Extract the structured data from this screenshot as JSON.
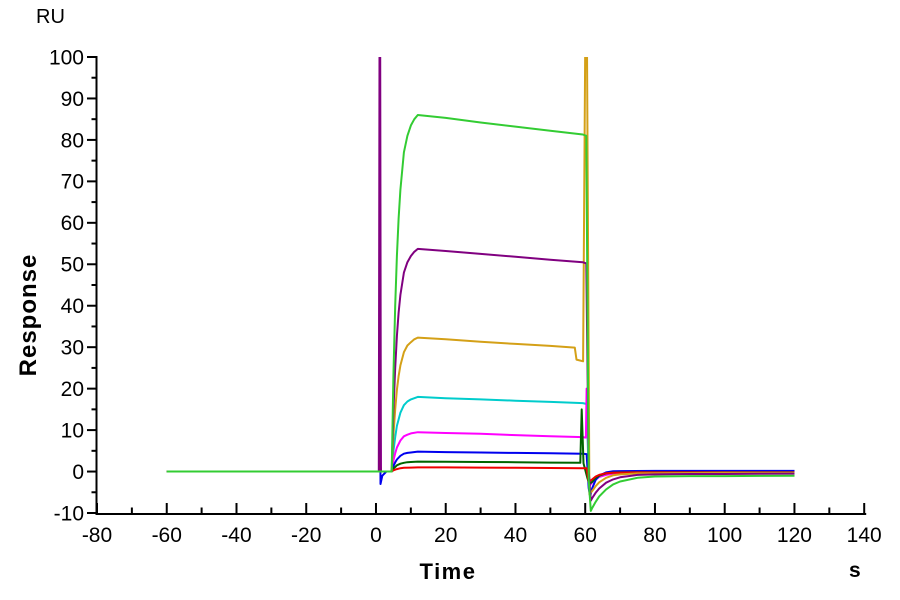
{
  "chart_data": {
    "type": "line",
    "title": "",
    "ylabel": "Response",
    "y_unit": "RU",
    "xlabel": "Time",
    "x_unit": "s",
    "xlim": [
      -80,
      140
    ],
    "ylim": [
      -10,
      100
    ],
    "x_ticks": [
      -80,
      -60,
      -40,
      -20,
      0,
      20,
      40,
      60,
      80,
      100,
      120,
      140
    ],
    "x_minor_ticks": [
      -70,
      -50,
      -30,
      -10,
      10,
      30,
      50,
      70,
      90,
      110,
      130
    ],
    "y_ticks": [
      -10,
      0,
      10,
      20,
      30,
      40,
      50,
      60,
      70,
      80,
      90,
      100
    ],
    "y_minor_ticks": [
      -5,
      5,
      15,
      25,
      35,
      45,
      55,
      65,
      75,
      85,
      95
    ],
    "grid": false,
    "legend": "none",
    "axis_color": "#000000",
    "series": [
      {
        "name": "cyan-18RU",
        "color": "#00CCCC",
        "points": [
          [
            -60,
            0
          ],
          [
            -30,
            0
          ],
          [
            0,
            0
          ],
          [
            4.5,
            0
          ],
          [
            5,
            4.9
          ],
          [
            5.5,
            8.3
          ],
          [
            6,
            11
          ],
          [
            7,
            14.2
          ],
          [
            8,
            16
          ],
          [
            9,
            16.9
          ],
          [
            10,
            17.4
          ],
          [
            12,
            18
          ],
          [
            20,
            17.7
          ],
          [
            30,
            17.4
          ],
          [
            40,
            17.1
          ],
          [
            50,
            16.8
          ],
          [
            59.3,
            16.5
          ],
          [
            60.4,
            16.3
          ],
          [
            61,
            -1
          ],
          [
            61.6,
            -3
          ],
          [
            62,
            -2.6
          ],
          [
            63,
            -1.8
          ],
          [
            64,
            -1.3
          ],
          [
            66,
            -0.7
          ],
          [
            68,
            -0.5
          ],
          [
            70,
            -0.4
          ],
          [
            75,
            -0.3
          ],
          [
            80,
            -0.3
          ],
          [
            90,
            -0.25
          ],
          [
            100,
            -0.25
          ],
          [
            110,
            -0.2
          ],
          [
            120,
            -0.2
          ]
        ]
      },
      {
        "name": "magenta-9.5RU",
        "color": "#FF00FF",
        "points": [
          [
            -60,
            0
          ],
          [
            -30,
            0
          ],
          [
            0,
            0
          ],
          [
            0.9,
            0
          ],
          [
            1.1,
            38
          ],
          [
            1.4,
            0
          ],
          [
            4.5,
            0
          ],
          [
            5,
            2.6
          ],
          [
            5.5,
            4.4
          ],
          [
            6,
            5.8
          ],
          [
            7,
            7.5
          ],
          [
            8,
            8.5
          ],
          [
            9,
            8.9
          ],
          [
            10,
            9.2
          ],
          [
            12,
            9.5
          ],
          [
            20,
            9.3
          ],
          [
            30,
            9.1
          ],
          [
            40,
            8.8
          ],
          [
            50,
            8.5
          ],
          [
            59.3,
            8.3
          ],
          [
            60.2,
            8.2
          ],
          [
            60.4,
            20
          ],
          [
            61.2,
            -3.5
          ],
          [
            62,
            -2.6
          ],
          [
            63,
            -1.9
          ],
          [
            64,
            -1.3
          ],
          [
            66,
            -0.8
          ],
          [
            68,
            -0.5
          ],
          [
            70,
            -0.4
          ],
          [
            75,
            -0.35
          ],
          [
            80,
            -0.3
          ],
          [
            90,
            -0.3
          ],
          [
            100,
            -0.3
          ],
          [
            110,
            -0.3
          ],
          [
            120,
            -0.3
          ]
        ]
      },
      {
        "name": "blue-5RU",
        "color": "#0000EE",
        "points": [
          [
            -60,
            0
          ],
          [
            -30,
            0
          ],
          [
            0,
            0
          ],
          [
            0.9,
            0
          ],
          [
            1.1,
            38
          ],
          [
            1.3,
            -3
          ],
          [
            1.8,
            -1
          ],
          [
            3,
            0
          ],
          [
            4.5,
            0
          ],
          [
            5,
            1.3
          ],
          [
            5.5,
            2.2
          ],
          [
            6,
            2.9
          ],
          [
            7,
            3.8
          ],
          [
            8,
            4.3
          ],
          [
            9,
            4.5
          ],
          [
            10,
            4.6
          ],
          [
            12,
            4.8
          ],
          [
            20,
            4.7
          ],
          [
            30,
            4.6
          ],
          [
            40,
            4.5
          ],
          [
            50,
            4.4
          ],
          [
            59.3,
            4.3
          ],
          [
            60.4,
            4.2
          ],
          [
            61,
            -4
          ],
          [
            61.4,
            -6
          ],
          [
            62,
            -4
          ],
          [
            63,
            -2
          ],
          [
            64,
            -1
          ],
          [
            66,
            -0.2
          ],
          [
            68,
            0.05
          ],
          [
            70,
            0.1
          ],
          [
            80,
            0.15
          ],
          [
            90,
            0.15
          ],
          [
            100,
            0.15
          ],
          [
            110,
            0.15
          ],
          [
            120,
            0.15
          ]
        ]
      },
      {
        "name": "darkgreen-2RU",
        "color": "#006400",
        "points": [
          [
            -60,
            0
          ],
          [
            -30,
            0
          ],
          [
            0,
            0
          ],
          [
            1,
            0
          ],
          [
            1.15,
            4
          ],
          [
            1.35,
            0
          ],
          [
            4.5,
            0
          ],
          [
            5,
            0.7
          ],
          [
            5.5,
            1.1
          ],
          [
            6,
            1.5
          ],
          [
            7,
            1.9
          ],
          [
            8,
            2.1
          ],
          [
            9,
            2.25
          ],
          [
            10,
            2.3
          ],
          [
            12,
            2.4
          ],
          [
            20,
            2.35
          ],
          [
            30,
            2.3
          ],
          [
            40,
            2.25
          ],
          [
            50,
            2.15
          ],
          [
            58.6,
            2.1
          ],
          [
            59,
            15
          ],
          [
            59.5,
            2
          ],
          [
            60.6,
            -1.5
          ],
          [
            61.2,
            -3
          ],
          [
            62,
            -2.5
          ],
          [
            63,
            -1.5
          ],
          [
            64,
            -1
          ],
          [
            66,
            -0.45
          ],
          [
            68,
            -0.26
          ],
          [
            70,
            -0.2
          ],
          [
            75,
            -0.16
          ],
          [
            80,
            -0.15
          ],
          [
            90,
            -0.15
          ],
          [
            100,
            -0.15
          ],
          [
            110,
            -0.15
          ],
          [
            120,
            -0.15
          ]
        ]
      },
      {
        "name": "red-1RU",
        "color": "#EE0000",
        "points": [
          [
            -60,
            0
          ],
          [
            -30,
            0
          ],
          [
            0,
            0
          ],
          [
            0.9,
            0
          ],
          [
            1.1,
            4
          ],
          [
            1.4,
            0
          ],
          [
            4.5,
            0
          ],
          [
            5,
            0.3
          ],
          [
            6,
            0.6
          ],
          [
            7,
            0.8
          ],
          [
            8,
            0.9
          ],
          [
            10,
            0.95
          ],
          [
            12,
            1
          ],
          [
            20,
            1
          ],
          [
            30,
            0.95
          ],
          [
            40,
            0.9
          ],
          [
            50,
            0.85
          ],
          [
            59.3,
            0.8
          ],
          [
            60.4,
            0.8
          ],
          [
            61,
            -2.5
          ],
          [
            62,
            -1.9
          ],
          [
            63,
            -1.2
          ],
          [
            64,
            -0.8
          ],
          [
            66,
            -0.4
          ],
          [
            68,
            -0.3
          ],
          [
            70,
            -0.25
          ],
          [
            75,
            -0.2
          ],
          [
            80,
            -0.2
          ],
          [
            90,
            -0.2
          ],
          [
            100,
            -0.2
          ],
          [
            110,
            -0.2
          ],
          [
            120,
            -0.2
          ]
        ]
      },
      {
        "name": "gold-32RU",
        "color": "#D4A017",
        "points": [
          [
            -60,
            0
          ],
          [
            -30,
            0
          ],
          [
            0,
            0
          ],
          [
            4.5,
            0
          ],
          [
            5,
            8.7
          ],
          [
            5.5,
            15
          ],
          [
            6,
            19.7
          ],
          [
            6.5,
            23
          ],
          [
            7,
            25.6
          ],
          [
            8,
            28.8
          ],
          [
            9,
            30.4
          ],
          [
            10,
            31.2
          ],
          [
            11,
            31.9
          ],
          [
            12,
            32.3
          ],
          [
            20,
            31.9
          ],
          [
            30,
            31.3
          ],
          [
            40,
            30.8
          ],
          [
            50,
            30.3
          ],
          [
            57,
            29.9
          ],
          [
            57.5,
            27
          ],
          [
            59.4,
            26.6
          ],
          [
            60,
            102
          ],
          [
            60.5,
            102
          ],
          [
            61.2,
            -5.5
          ],
          [
            62,
            -4.7
          ],
          [
            63,
            -3.5
          ],
          [
            64,
            -2.6
          ],
          [
            66,
            -1.5
          ],
          [
            68,
            -0.9
          ],
          [
            70,
            -0.7
          ],
          [
            75,
            -0.45
          ],
          [
            80,
            -0.4
          ],
          [
            90,
            -0.35
          ],
          [
            100,
            -0.3
          ],
          [
            110,
            -0.3
          ],
          [
            120,
            -0.3
          ]
        ]
      },
      {
        "name": "purple-54RU",
        "color": "#800080",
        "points": [
          [
            -60,
            0
          ],
          [
            -30,
            0
          ],
          [
            0,
            0
          ],
          [
            0.8,
            0
          ],
          [
            1,
            102
          ],
          [
            1.2,
            102
          ],
          [
            1.4,
            0
          ],
          [
            4.5,
            0
          ],
          [
            5,
            14.5
          ],
          [
            5.5,
            25
          ],
          [
            6,
            32.7
          ],
          [
            6.5,
            38.3
          ],
          [
            7,
            42.6
          ],
          [
            8,
            48
          ],
          [
            9,
            50.5
          ],
          [
            10,
            52
          ],
          [
            11,
            53
          ],
          [
            12,
            53.7
          ],
          [
            20,
            53.2
          ],
          [
            30,
            52.5
          ],
          [
            40,
            51.8
          ],
          [
            50,
            51.1
          ],
          [
            59.3,
            50.5
          ],
          [
            60.3,
            50.2
          ],
          [
            61,
            0
          ],
          [
            61.6,
            -7
          ],
          [
            62,
            -6.4
          ],
          [
            63,
            -5.1
          ],
          [
            64,
            -4.1
          ],
          [
            66,
            -2.7
          ],
          [
            68,
            -1.9
          ],
          [
            70,
            -1.4
          ],
          [
            75,
            -0.8
          ],
          [
            80,
            -0.7
          ],
          [
            90,
            -0.6
          ],
          [
            100,
            -0.6
          ],
          [
            110,
            -0.55
          ],
          [
            120,
            -0.5
          ]
        ]
      },
      {
        "name": "green-86RU",
        "color": "#33CC33",
        "points": [
          [
            -60,
            0
          ],
          [
            -30,
            0
          ],
          [
            0,
            0
          ],
          [
            2,
            0
          ],
          [
            4.5,
            0
          ],
          [
            5,
            23
          ],
          [
            5.5,
            40
          ],
          [
            6,
            52
          ],
          [
            6.5,
            61
          ],
          [
            7,
            68
          ],
          [
            8,
            77
          ],
          [
            9,
            81
          ],
          [
            10,
            83.5
          ],
          [
            11,
            85
          ],
          [
            12,
            86
          ],
          [
            20,
            85.3
          ],
          [
            30,
            84.2
          ],
          [
            40,
            83.2
          ],
          [
            50,
            82.2
          ],
          [
            59.3,
            81.3
          ],
          [
            60.3,
            81
          ],
          [
            61,
            -2
          ],
          [
            61.6,
            -9.5
          ],
          [
            62,
            -8.8
          ],
          [
            63,
            -7.3
          ],
          [
            64,
            -6
          ],
          [
            66,
            -4.3
          ],
          [
            68,
            -3.1
          ],
          [
            70,
            -2.4
          ],
          [
            75,
            -1.5
          ],
          [
            80,
            -1.2
          ],
          [
            90,
            -1.1
          ],
          [
            100,
            -1.1
          ],
          [
            110,
            -1.05
          ],
          [
            120,
            -1
          ]
        ]
      }
    ]
  }
}
